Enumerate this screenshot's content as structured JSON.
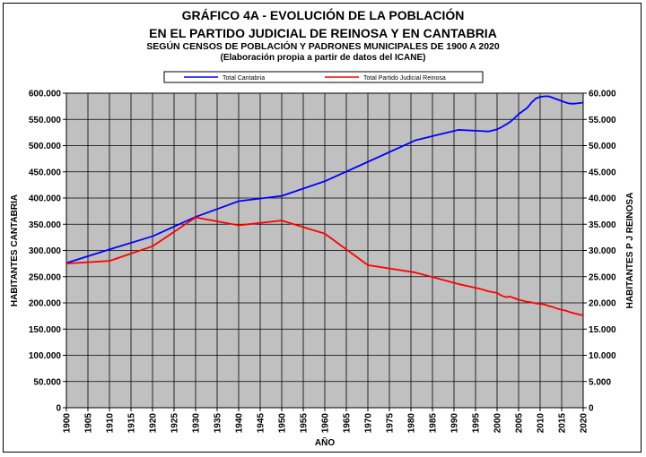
{
  "chart_data": {
    "type": "line",
    "title_lines": [
      "GRÁFICO 4A - EVOLUCIÓN DE LA POBLACIÓN",
      "EN EL PARTIDO JUDICIAL DE REINOSA Y EN CANTABRIA",
      "SEGÚN CENSOS DE POBLACIÓN Y PADRONES MUNICIPALES DE 1900 A 2020",
      "(Elaboración propia a partir de datos del ICANE)"
    ],
    "xlabel": "AÑO",
    "ylabel_left": "HABITANTES CANTABRIA",
    "ylabel_right": "HABITANTES P J REINOSA",
    "xlim": [
      1900,
      2020
    ],
    "ylim_left": [
      0,
      600000
    ],
    "ylim_right": [
      0,
      60000
    ],
    "x_ticks": [
      "1900",
      "1905",
      "1910",
      "1915",
      "1920",
      "1925",
      "1930",
      "1935",
      "1940",
      "1945",
      "1950",
      "1955",
      "1960",
      "1965",
      "1970",
      "1975",
      "1980",
      "1985",
      "1990",
      "1995",
      "2000",
      "2005",
      "2010",
      "2015",
      "2020"
    ],
    "y_ticks_left": [
      "0",
      "50.000",
      "100.000",
      "150.000",
      "200.000",
      "250.000",
      "300.000",
      "350.000",
      "400.000",
      "450.000",
      "500.000",
      "550.000",
      "600.000"
    ],
    "y_ticks_right": [
      "0",
      "5.000",
      "10.000",
      "15.000",
      "20.000",
      "25.000",
      "30.000",
      "35.000",
      "40.000",
      "45.000",
      "50.000",
      "55.000",
      "60.000"
    ],
    "grid": true,
    "plot_background": "#c0c0c0",
    "legend_position": "top",
    "series": [
      {
        "name": "Total Cantabria",
        "axis": "left",
        "color": "#0000ff",
        "points": [
          [
            1900,
            276000
          ],
          [
            1910,
            302000
          ],
          [
            1920,
            327000
          ],
          [
            1930,
            364000
          ],
          [
            1940,
            394000
          ],
          [
            1950,
            404000
          ],
          [
            1960,
            432000
          ],
          [
            1970,
            469000
          ],
          [
            1981,
            510000
          ],
          [
            1986,
            520000
          ],
          [
            1991,
            530000
          ],
          [
            1996,
            528000
          ],
          [
            1998,
            527000
          ],
          [
            2000,
            531000
          ],
          [
            2001,
            535000
          ],
          [
            2002,
            540000
          ],
          [
            2003,
            545000
          ],
          [
            2004,
            552000
          ],
          [
            2005,
            560000
          ],
          [
            2006,
            566000
          ],
          [
            2007,
            572000
          ],
          [
            2008,
            582000
          ],
          [
            2009,
            590000
          ],
          [
            2010,
            593000
          ],
          [
            2011,
            594000
          ],
          [
            2012,
            594000
          ],
          [
            2013,
            591000
          ],
          [
            2014,
            588000
          ],
          [
            2015,
            585000
          ],
          [
            2016,
            582000
          ],
          [
            2017,
            580000
          ],
          [
            2018,
            580000
          ],
          [
            2019,
            581000
          ],
          [
            2020,
            582000
          ]
        ]
      },
      {
        "name": "Total Partido Judicial Reinosa",
        "axis": "right",
        "color": "#ff0000",
        "points": [
          [
            1900,
            27500
          ],
          [
            1910,
            28000
          ],
          [
            1920,
            30800
          ],
          [
            1930,
            36300
          ],
          [
            1940,
            34800
          ],
          [
            1950,
            35700
          ],
          [
            1960,
            33200
          ],
          [
            1970,
            27200
          ],
          [
            1981,
            25800
          ],
          [
            1986,
            24700
          ],
          [
            1991,
            23600
          ],
          [
            1996,
            22700
          ],
          [
            1998,
            22200
          ],
          [
            2000,
            21900
          ],
          [
            2001,
            21400
          ],
          [
            2002,
            21100
          ],
          [
            2003,
            21200
          ],
          [
            2004,
            20900
          ],
          [
            2005,
            20600
          ],
          [
            2006,
            20400
          ],
          [
            2007,
            20200
          ],
          [
            2008,
            20100
          ],
          [
            2009,
            19900
          ],
          [
            2010,
            19800
          ],
          [
            2011,
            19700
          ],
          [
            2012,
            19400
          ],
          [
            2013,
            19200
          ],
          [
            2014,
            18900
          ],
          [
            2015,
            18700
          ],
          [
            2016,
            18500
          ],
          [
            2017,
            18200
          ],
          [
            2018,
            18000
          ],
          [
            2019,
            17800
          ],
          [
            2020,
            17600
          ]
        ]
      }
    ]
  }
}
